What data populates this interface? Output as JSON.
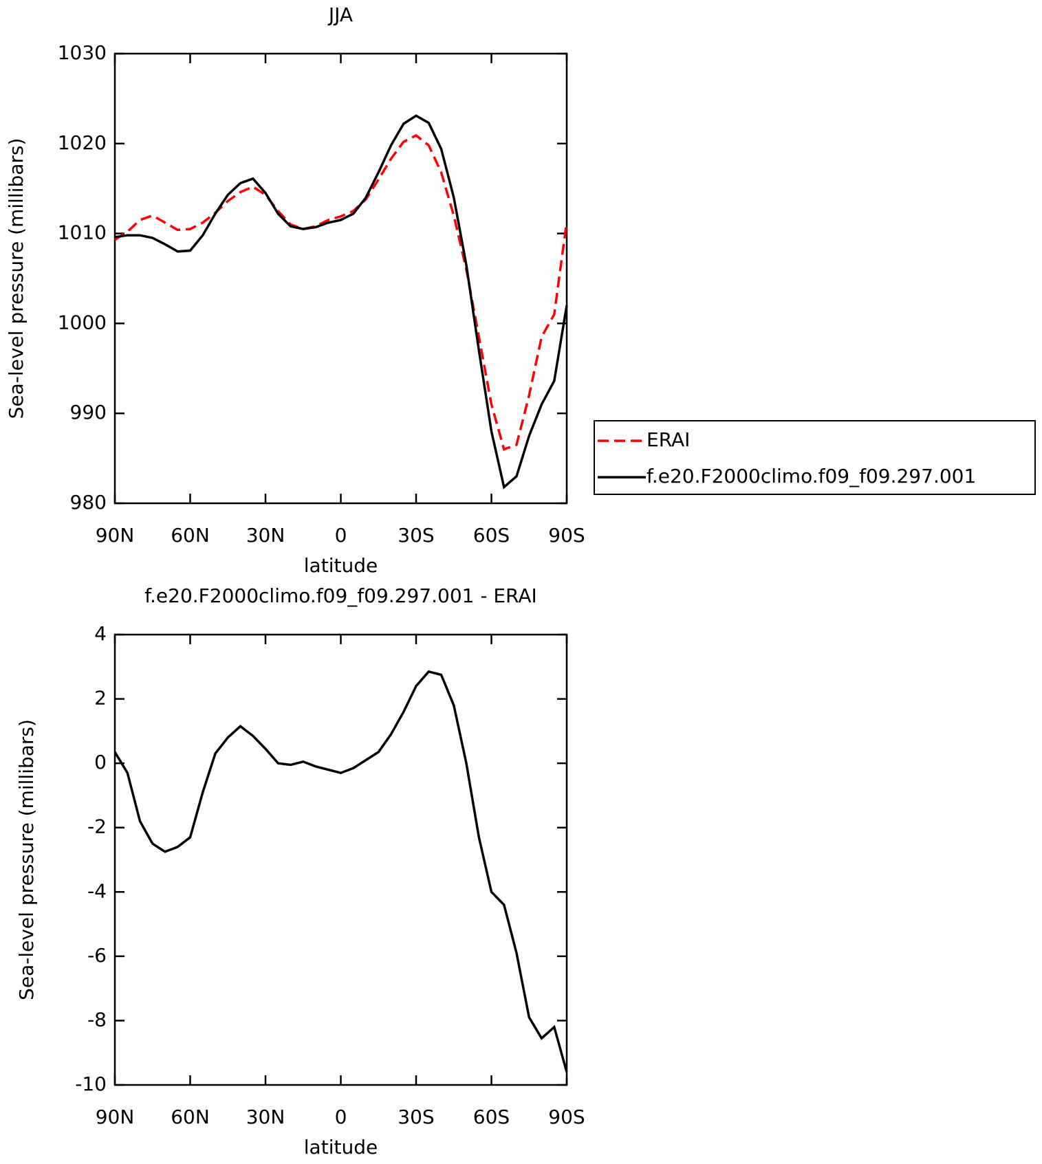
{
  "chart_data": [
    {
      "type": "line",
      "title": "JJA",
      "xlabel": "latitude",
      "ylabel": "Sea-level pressure (millibars)",
      "x": [
        90,
        85,
        80,
        75,
        70,
        65,
        60,
        55,
        50,
        45,
        40,
        35,
        30,
        25,
        20,
        15,
        10,
        5,
        0,
        -5,
        -10,
        -15,
        -20,
        -25,
        -30,
        -35,
        -40,
        -45,
        -50,
        -55,
        -60,
        -65,
        -70,
        -75,
        -80,
        -85,
        -90
      ],
      "series": [
        {
          "name": "ERAI",
          "color": "#ff0000",
          "style": "dashed",
          "values": [
            1009.3,
            1010.2,
            1011.5,
            1012,
            1011.2,
            1010.4,
            1010.5,
            1011.2,
            1012.3,
            1013.6,
            1014.6,
            1015.2,
            1014.3,
            1012.5,
            1011,
            1010.5,
            1010.8,
            1011.5,
            1011.9,
            1012.5,
            1013.8,
            1016,
            1018.3,
            1020.2,
            1020.9,
            1019.8,
            1016.8,
            1012,
            1006,
            998.5,
            991,
            986,
            986.5,
            992,
            998.5,
            1001,
            1011.3
          ]
        },
        {
          "name": "f.e20.F2000climo.f09_f09.297.001",
          "color": "#000000",
          "style": "solid",
          "values": [
            1009.6,
            1009.8,
            1009.8,
            1009.5,
            1008.8,
            1008,
            1008.1,
            1009.8,
            1012.2,
            1014.3,
            1015.6,
            1016.1,
            1014.5,
            1012.2,
            1010.8,
            1010.5,
            1010.7,
            1011.2,
            1011.5,
            1012.2,
            1014,
            1016.8,
            1019.8,
            1022.2,
            1023.1,
            1022.3,
            1019.4,
            1014,
            1006.5,
            997,
            988,
            981.8,
            983,
            987.5,
            991,
            993.6,
            1002
          ]
        }
      ],
      "xlim": [
        90,
        -90
      ],
      "xticks": [
        {
          "value": 90,
          "label": "90N"
        },
        {
          "value": 60,
          "label": "60N"
        },
        {
          "value": 30,
          "label": "30N"
        },
        0,
        {
          "value": -30,
          "label": "30S"
        },
        {
          "value": -60,
          "label": "60S"
        },
        {
          "value": -90,
          "label": "90S"
        }
      ],
      "ylim": [
        980,
        1030
      ],
      "yticks": [
        980,
        990,
        1000,
        1010,
        1020,
        1030
      ],
      "legend": "right"
    },
    {
      "type": "line",
      "title": "f.e20.F2000climo.f09_f09.297.001 - ERAI",
      "xlabel": "latitude",
      "ylabel": "Sea-level pressure (millibars)",
      "x": [
        90,
        85,
        80,
        75,
        70,
        65,
        60,
        55,
        50,
        45,
        40,
        35,
        30,
        25,
        20,
        15,
        10,
        5,
        0,
        -5,
        -10,
        -15,
        -20,
        -25,
        -30,
        -35,
        -40,
        -45,
        -50,
        -55,
        -60,
        -65,
        -70,
        -75,
        -80,
        -85,
        -90
      ],
      "series": [
        {
          "color": "#000000",
          "style": "solid",
          "values": [
            0.35,
            -0.3,
            -1.8,
            -2.5,
            -2.75,
            -2.6,
            -2.3,
            -0.9,
            0.3,
            0.8,
            1.15,
            0.85,
            0.45,
            0,
            -0.05,
            0.05,
            -0.1,
            -0.2,
            -0.3,
            -0.15,
            0.1,
            0.35,
            0.9,
            1.6,
            2.4,
            2.85,
            2.75,
            1.8,
            0,
            -2.3,
            -4,
            -4.4,
            -5.9,
            -7.9,
            -8.55,
            -8.2,
            -9.6
          ]
        }
      ],
      "xlim": [
        90,
        -90
      ],
      "xticks": [
        {
          "value": 90,
          "label": "90N"
        },
        {
          "value": 60,
          "label": "60N"
        },
        {
          "value": 30,
          "label": "30N"
        },
        0,
        {
          "value": -30,
          "label": "30S"
        },
        {
          "value": -60,
          "label": "60S"
        },
        {
          "value": -90,
          "label": "90S"
        }
      ],
      "ylim": [
        -10,
        4
      ],
      "yticks": [
        -10,
        -8,
        -6,
        -4,
        -2,
        0,
        2,
        4
      ]
    }
  ]
}
